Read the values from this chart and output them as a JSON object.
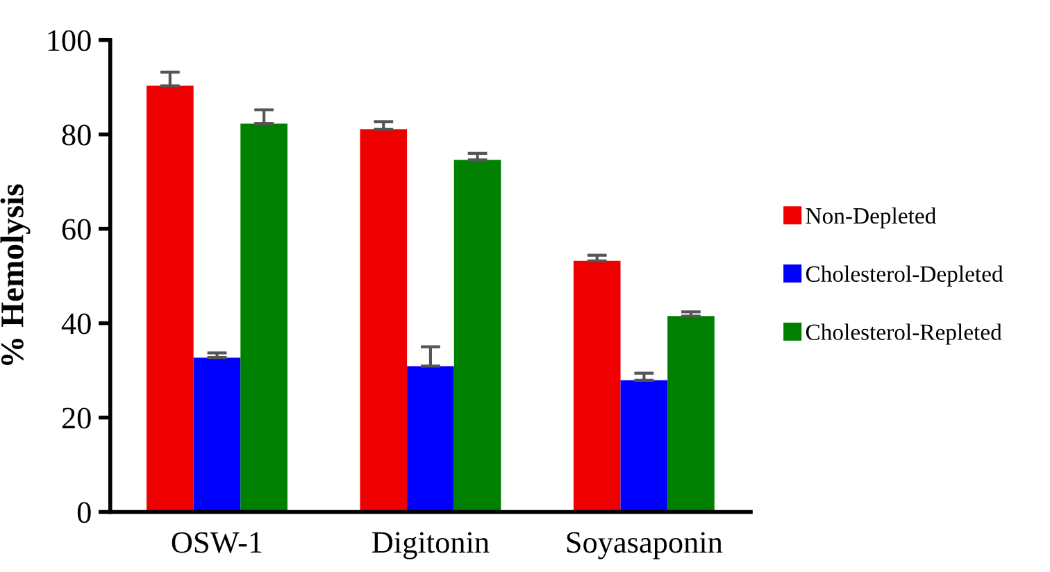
{
  "chart_data": {
    "type": "bar",
    "ylabel": "% Hemolysis",
    "categories": [
      "OSW-1",
      "Digitonin",
      "Soyasaponin"
    ],
    "series": [
      {
        "name": "Non-Depleted",
        "color": "#ee0000",
        "values": [
          90.3,
          81.1,
          53.2
        ],
        "errors": [
          [
            90.3,
            93.2
          ],
          [
            81.1,
            82.7
          ],
          [
            53.2,
            54.4
          ]
        ]
      },
      {
        "name": "Cholesterol-Depleted",
        "color": "#0000ff",
        "values": [
          32.7,
          30.9,
          27.9
        ],
        "errors": [
          [
            32.7,
            33.7
          ],
          [
            30.9,
            35.0
          ],
          [
            27.9,
            29.4
          ]
        ]
      },
      {
        "name": "Cholesterol-Repleted",
        "color": "#008000",
        "values": [
          82.3,
          74.6,
          41.5
        ],
        "errors": [
          [
            82.3,
            85.2
          ],
          [
            74.6,
            76.0
          ],
          [
            41.5,
            42.4
          ]
        ]
      }
    ],
    "ylim": [
      0,
      100
    ],
    "yticks": [
      0,
      20,
      40,
      60,
      80,
      100
    ],
    "grid": false,
    "legend": "right"
  }
}
